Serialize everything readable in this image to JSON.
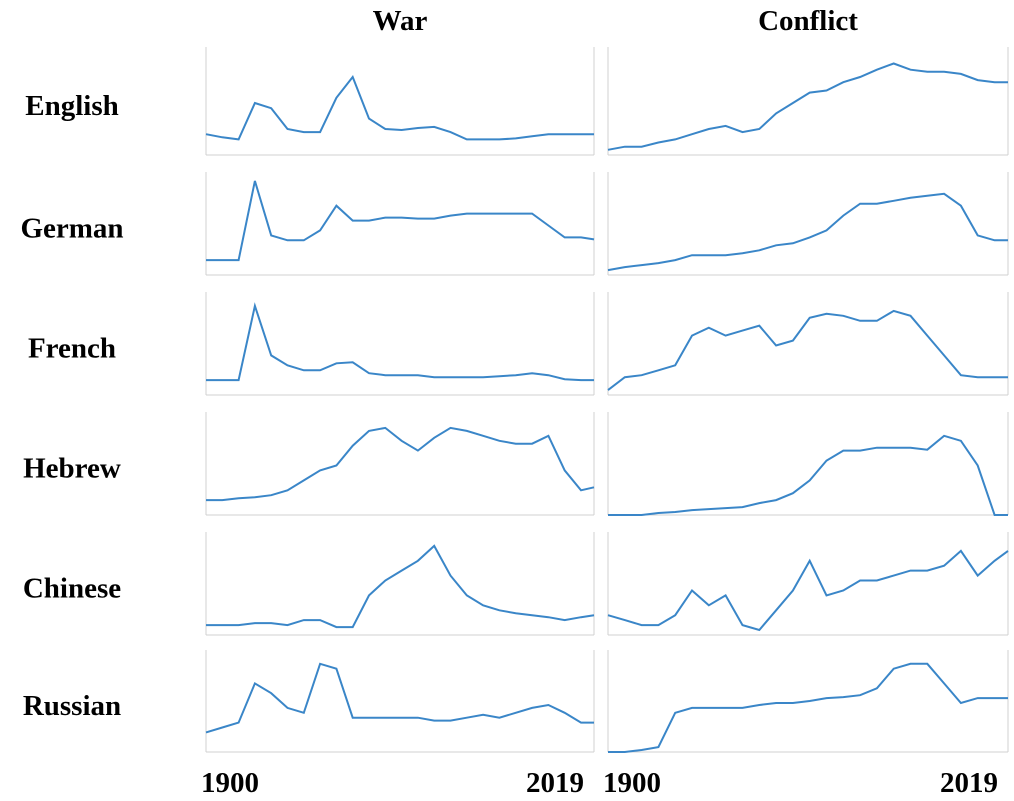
{
  "columns": [
    "War",
    "Conflict"
  ],
  "rows": [
    "English",
    "German",
    "French",
    "Hebrew",
    "Chinese",
    "Russian"
  ],
  "x_axis_labels": [
    "1900",
    "2019"
  ],
  "chart_data": [
    {
      "type": "line",
      "color": "#3a86c8",
      "xlim": [
        1900,
        2019
      ],
      "ylim": [
        0,
        100
      ],
      "x": [
        1900,
        1905,
        1910,
        1915,
        1920,
        1925,
        1930,
        1935,
        1940,
        1945,
        1950,
        1955,
        1960,
        1965,
        1970,
        1975,
        1980,
        1985,
        1990,
        1995,
        2000,
        2005,
        2010,
        2015,
        2019
      ],
      "values": [
        20,
        17,
        15,
        50,
        45,
        25,
        22,
        22,
        55,
        75,
        35,
        25,
        24,
        26,
        27,
        22,
        15,
        15,
        15,
        16,
        18,
        20,
        20,
        20,
        20
      ]
    },
    {
      "type": "line",
      "color": "#3a86c8",
      "xlim": [
        1900,
        2019
      ],
      "ylim": [
        0,
        100
      ],
      "x": [
        1900,
        1905,
        1910,
        1915,
        1920,
        1925,
        1930,
        1935,
        1940,
        1945,
        1950,
        1955,
        1960,
        1965,
        1970,
        1975,
        1980,
        1985,
        1990,
        1995,
        2000,
        2005,
        2010,
        2015,
        2019
      ],
      "values": [
        5,
        8,
        8,
        12,
        15,
        20,
        25,
        28,
        22,
        25,
        40,
        50,
        60,
        62,
        70,
        75,
        82,
        88,
        82,
        80,
        80,
        78,
        72,
        70,
        70
      ]
    },
    {
      "type": "line",
      "color": "#3a86c8",
      "xlim": [
        1900,
        2019
      ],
      "ylim": [
        0,
        100
      ],
      "x": [
        1900,
        1905,
        1910,
        1915,
        1920,
        1925,
        1930,
        1935,
        1940,
        1945,
        1950,
        1955,
        1960,
        1965,
        1970,
        1975,
        1980,
        1985,
        1990,
        1995,
        2000,
        2005,
        2010,
        2015,
        2019
      ],
      "values": [
        15,
        15,
        15,
        95,
        40,
        35,
        35,
        45,
        70,
        55,
        55,
        58,
        58,
        57,
        57,
        60,
        62,
        62,
        62,
        62,
        62,
        50,
        38,
        38,
        36
      ]
    },
    {
      "type": "line",
      "color": "#3a86c8",
      "xlim": [
        1900,
        2019
      ],
      "ylim": [
        0,
        100
      ],
      "x": [
        1900,
        1905,
        1910,
        1915,
        1920,
        1925,
        1930,
        1935,
        1940,
        1945,
        1950,
        1955,
        1960,
        1965,
        1970,
        1975,
        1980,
        1985,
        1990,
        1995,
        2000,
        2005,
        2010,
        2015,
        2019
      ],
      "values": [
        5,
        8,
        10,
        12,
        15,
        20,
        20,
        20,
        22,
        25,
        30,
        32,
        38,
        45,
        60,
        72,
        72,
        75,
        78,
        80,
        82,
        70,
        40,
        35,
        35
      ]
    },
    {
      "type": "line",
      "color": "#3a86c8",
      "xlim": [
        1900,
        2019
      ],
      "ylim": [
        0,
        100
      ],
      "x": [
        1900,
        1905,
        1910,
        1915,
        1920,
        1925,
        1930,
        1935,
        1940,
        1945,
        1950,
        1955,
        1960,
        1965,
        1970,
        1975,
        1980,
        1985,
        1990,
        1995,
        2000,
        2005,
        2010,
        2015,
        2019
      ],
      "values": [
        15,
        15,
        15,
        90,
        40,
        30,
        25,
        25,
        32,
        33,
        22,
        20,
        20,
        20,
        18,
        18,
        18,
        18,
        19,
        20,
        22,
        20,
        16,
        15,
        15
      ]
    },
    {
      "type": "line",
      "color": "#3a86c8",
      "xlim": [
        1900,
        2019
      ],
      "ylim": [
        0,
        100
      ],
      "x": [
        1900,
        1905,
        1910,
        1915,
        1920,
        1925,
        1930,
        1935,
        1940,
        1945,
        1950,
        1955,
        1960,
        1965,
        1970,
        1975,
        1980,
        1985,
        1990,
        1995,
        2000,
        2005,
        2010,
        2015,
        2019
      ],
      "values": [
        5,
        18,
        20,
        25,
        30,
        60,
        68,
        60,
        65,
        70,
        50,
        55,
        78,
        82,
        80,
        75,
        75,
        85,
        80,
        60,
        40,
        20,
        18,
        18,
        18
      ]
    },
    {
      "type": "line",
      "color": "#3a86c8",
      "xlim": [
        1900,
        2019
      ],
      "ylim": [
        0,
        100
      ],
      "x": [
        1900,
        1905,
        1910,
        1915,
        1920,
        1925,
        1930,
        1935,
        1940,
        1945,
        1950,
        1955,
        1960,
        1965,
        1970,
        1975,
        1980,
        1985,
        1990,
        1995,
        2000,
        2005,
        2010,
        2015,
        2019
      ],
      "values": [
        15,
        15,
        17,
        18,
        20,
        25,
        35,
        45,
        50,
        70,
        85,
        88,
        75,
        65,
        78,
        88,
        85,
        80,
        75,
        72,
        72,
        80,
        45,
        25,
        28
      ]
    },
    {
      "type": "line",
      "color": "#3a86c8",
      "xlim": [
        1900,
        2019
      ],
      "ylim": [
        0,
        100
      ],
      "x": [
        1900,
        1905,
        1910,
        1915,
        1920,
        1925,
        1930,
        1935,
        1940,
        1945,
        1950,
        1955,
        1960,
        1965,
        1970,
        1975,
        1980,
        1985,
        1990,
        1995,
        2000,
        2005,
        2010,
        2015,
        2019
      ],
      "values": [
        0,
        0,
        0,
        2,
        3,
        5,
        6,
        7,
        8,
        12,
        15,
        22,
        35,
        55,
        65,
        65,
        68,
        68,
        68,
        66,
        80,
        75,
        50,
        0,
        0
      ]
    },
    {
      "type": "line",
      "color": "#3a86c8",
      "xlim": [
        1900,
        2019
      ],
      "ylim": [
        0,
        100
      ],
      "x": [
        1900,
        1905,
        1910,
        1915,
        1920,
        1925,
        1930,
        1935,
        1940,
        1945,
        1950,
        1955,
        1960,
        1965,
        1970,
        1975,
        1980,
        1985,
        1990,
        1995,
        2000,
        2005,
        2010,
        2015,
        2019
      ],
      "values": [
        10,
        10,
        10,
        12,
        12,
        10,
        15,
        15,
        8,
        8,
        40,
        55,
        65,
        75,
        90,
        60,
        40,
        30,
        25,
        22,
        20,
        18,
        15,
        18,
        20
      ]
    },
    {
      "type": "line",
      "color": "#3a86c8",
      "xlim": [
        1900,
        2019
      ],
      "ylim": [
        0,
        100
      ],
      "x": [
        1900,
        1905,
        1910,
        1915,
        1920,
        1925,
        1930,
        1935,
        1940,
        1945,
        1950,
        1955,
        1960,
        1965,
        1970,
        1975,
        1980,
        1985,
        1990,
        1995,
        2000,
        2005,
        2010,
        2015,
        2019
      ],
      "values": [
        20,
        15,
        10,
        10,
        20,
        45,
        30,
        40,
        10,
        5,
        25,
        45,
        75,
        40,
        45,
        55,
        55,
        60,
        65,
        65,
        70,
        85,
        60,
        75,
        85
      ]
    },
    {
      "type": "line",
      "color": "#3a86c8",
      "xlim": [
        1900,
        2019
      ],
      "ylim": [
        0,
        100
      ],
      "x": [
        1900,
        1905,
        1910,
        1915,
        1920,
        1925,
        1930,
        1935,
        1940,
        1945,
        1950,
        1955,
        1960,
        1965,
        1970,
        1975,
        1980,
        1985,
        1990,
        1995,
        2000,
        2005,
        2010,
        2015,
        2019
      ],
      "values": [
        20,
        25,
        30,
        70,
        60,
        45,
        40,
        90,
        85,
        35,
        35,
        35,
        35,
        35,
        32,
        32,
        35,
        38,
        35,
        40,
        45,
        48,
        40,
        30,
        30
      ]
    },
    {
      "type": "line",
      "color": "#3a86c8",
      "xlim": [
        1900,
        2019
      ],
      "ylim": [
        0,
        100
      ],
      "x": [
        1900,
        1905,
        1910,
        1915,
        1920,
        1925,
        1930,
        1935,
        1940,
        1945,
        1950,
        1955,
        1960,
        1965,
        1970,
        1975,
        1980,
        1985,
        1990,
        1995,
        2000,
        2005,
        2010,
        2015,
        2019
      ],
      "values": [
        0,
        0,
        2,
        5,
        40,
        45,
        45,
        45,
        45,
        48,
        50,
        50,
        52,
        55,
        56,
        58,
        65,
        85,
        90,
        90,
        70,
        50,
        55,
        55,
        55
      ]
    }
  ]
}
